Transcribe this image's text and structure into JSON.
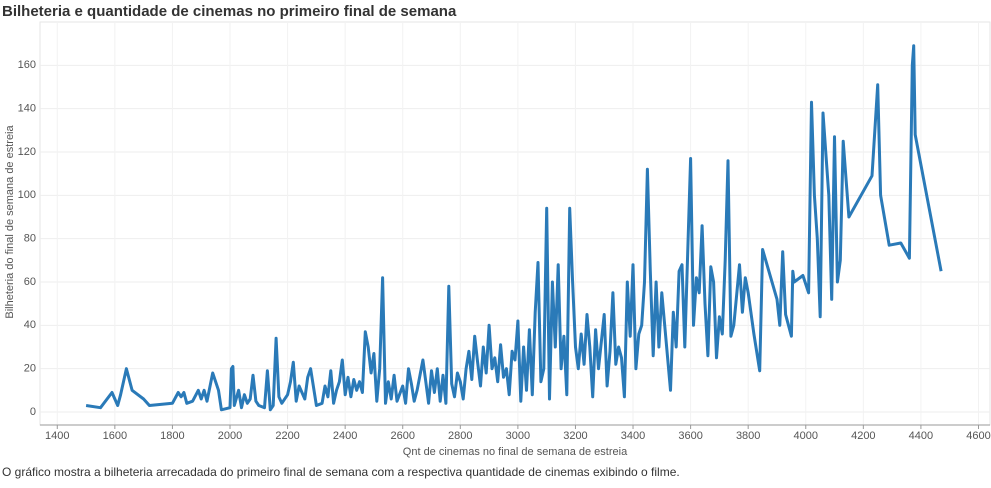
{
  "chart_data": {
    "type": "line",
    "title": "Bilheteria e quantidade de cinemas no primeiro final de semana",
    "x_label": "Qnt de cinemas no final de semana de estreia",
    "y_label": "Bilheteria do final de semana de estreia",
    "caption": "O gráfico mostra a bilheteria arrecadada do primeiro final de semana com a respectiva quantidade de cinemas exibindo o filme.",
    "color": "#2a7ab8",
    "grid": true,
    "xlim": [
      1340,
      4640
    ],
    "ylim": [
      -6,
      180
    ],
    "xticks": [
      1400,
      1600,
      1800,
      2000,
      2200,
      2400,
      2600,
      2800,
      3000,
      3200,
      3400,
      3600,
      3800,
      4000,
      4200,
      4400,
      4600
    ],
    "yticks": [
      0,
      20,
      40,
      60,
      80,
      100,
      120,
      140,
      160
    ],
    "x": [
      1500,
      1550,
      1590,
      1610,
      1620,
      1640,
      1660,
      1700,
      1720,
      1800,
      1820,
      1830,
      1840,
      1850,
      1870,
      1890,
      1900,
      1910,
      1920,
      1940,
      1960,
      1970,
      2000,
      2005,
      2010,
      2015,
      2030,
      2040,
      2050,
      2060,
      2070,
      2080,
      2090,
      2100,
      2120,
      2130,
      2140,
      2150,
      2160,
      2170,
      2180,
      2200,
      2210,
      2220,
      2230,
      2240,
      2260,
      2270,
      2280,
      2300,
      2320,
      2330,
      2340,
      2350,
      2360,
      2370,
      2380,
      2390,
      2400,
      2410,
      2420,
      2430,
      2440,
      2450,
      2460,
      2470,
      2480,
      2490,
      2500,
      2510,
      2520,
      2530,
      2540,
      2550,
      2560,
      2570,
      2580,
      2600,
      2610,
      2620,
      2630,
      2640,
      2650,
      2660,
      2670,
      2680,
      2690,
      2700,
      2710,
      2720,
      2730,
      2740,
      2750,
      2760,
      2770,
      2780,
      2790,
      2800,
      2810,
      2820,
      2830,
      2840,
      2850,
      2860,
      2870,
      2880,
      2890,
      2900,
      2910,
      2920,
      2930,
      2940,
      2950,
      2960,
      2970,
      2980,
      2990,
      3000,
      3010,
      3020,
      3030,
      3040,
      3050,
      3060,
      3070,
      3080,
      3090,
      3100,
      3110,
      3120,
      3130,
      3140,
      3150,
      3160,
      3170,
      3180,
      3190,
      3200,
      3210,
      3220,
      3230,
      3240,
      3250,
      3260,
      3270,
      3280,
      3300,
      3310,
      3320,
      3330,
      3340,
      3350,
      3360,
      3370,
      3380,
      3390,
      3400,
      3410,
      3420,
      3430,
      3440,
      3450,
      3460,
      3470,
      3480,
      3490,
      3500,
      3510,
      3520,
      3530,
      3540,
      3550,
      3560,
      3570,
      3580,
      3600,
      3610,
      3620,
      3630,
      3640,
      3650,
      3660,
      3670,
      3680,
      3690,
      3700,
      3710,
      3720,
      3730,
      3740,
      3750,
      3770,
      3780,
      3790,
      3800,
      3820,
      3840,
      3850,
      3900,
      3910,
      3920,
      3930,
      3940,
      3950,
      3955,
      3960,
      3990,
      4010,
      4020,
      4030,
      4040,
      4050,
      4060,
      4080,
      4090,
      4100,
      4110,
      4120,
      4130,
      4150,
      4230,
      4250,
      4260,
      4290,
      4330,
      4360,
      4370,
      4375,
      4380,
      4470
    ],
    "values": [
      3,
      2,
      9,
      3,
      8,
      20,
      10,
      6,
      3,
      4,
      9,
      7,
      9,
      4,
      5,
      10,
      6,
      10,
      5,
      18,
      10,
      1,
      2,
      20,
      21,
      3,
      10,
      2,
      8,
      4,
      6,
      17,
      5,
      3,
      2,
      19,
      1,
      3,
      34,
      7,
      4,
      8,
      14,
      23,
      5,
      12,
      6,
      16,
      20,
      3,
      4,
      12,
      7,
      19,
      4,
      10,
      14,
      24,
      8,
      16,
      7,
      15,
      10,
      14,
      9,
      37,
      30,
      18,
      27,
      5,
      20,
      62,
      4,
      14,
      6,
      17,
      5,
      12,
      4,
      20,
      13,
      5,
      10,
      17,
      24,
      14,
      4,
      19,
      9,
      20,
      5,
      17,
      4,
      58,
      13,
      7,
      18,
      14,
      6,
      20,
      28,
      15,
      35,
      23,
      12,
      30,
      18,
      40,
      20,
      25,
      14,
      31,
      16,
      20,
      8,
      28,
      24,
      42,
      5,
      30,
      10,
      38,
      8,
      46,
      69,
      14,
      20,
      94,
      6,
      60,
      30,
      68,
      20,
      35,
      8,
      94,
      60,
      30,
      20,
      36,
      22,
      45,
      30,
      7,
      38,
      20,
      45,
      12,
      28,
      55,
      22,
      30,
      25,
      7,
      60,
      35,
      68,
      20,
      36,
      40,
      60,
      112,
      65,
      26,
      60,
      30,
      55,
      40,
      25,
      10,
      46,
      30,
      65,
      68,
      30,
      117,
      40,
      62,
      55,
      86,
      50,
      26,
      67,
      60,
      25,
      44,
      36,
      70,
      116,
      35,
      40,
      68,
      46,
      62,
      55,
      36,
      19,
      75,
      52,
      40,
      74,
      45,
      40,
      35,
      65,
      60,
      63,
      55,
      143,
      100,
      80,
      44,
      138,
      100,
      52,
      127,
      60,
      70,
      125,
      90,
      109,
      151,
      100,
      77,
      78,
      71,
      160,
      169,
      128,
      65
    ]
  }
}
